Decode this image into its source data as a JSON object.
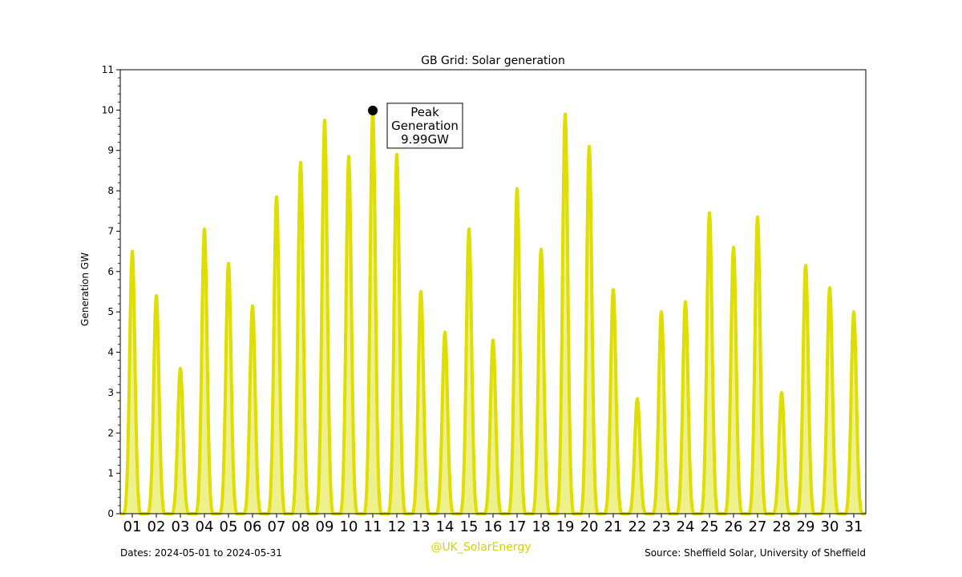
{
  "chart_data": {
    "type": "area",
    "title": "GB Grid: Solar generation",
    "ylabel": "Generation GW",
    "xlabel": "",
    "ylim": [
      0,
      11
    ],
    "yticks": [
      0,
      1,
      2,
      3,
      4,
      5,
      6,
      7,
      8,
      9,
      10,
      11
    ],
    "categories": [
      "01",
      "02",
      "03",
      "04",
      "05",
      "06",
      "07",
      "08",
      "09",
      "10",
      "11",
      "12",
      "13",
      "14",
      "15",
      "16",
      "17",
      "18",
      "19",
      "20",
      "21",
      "22",
      "23",
      "24",
      "25",
      "26",
      "27",
      "28",
      "29",
      "30",
      "31"
    ],
    "series": [
      {
        "values": [
          6.5,
          5.4,
          3.6,
          7.05,
          6.2,
          5.15,
          7.85,
          8.7,
          9.75,
          8.85,
          9.99,
          8.9,
          5.5,
          4.5,
          7.05,
          4.3,
          8.05,
          6.55,
          9.9,
          9.1,
          5.55,
          2.85,
          5.0,
          5.25,
          7.45,
          6.6,
          7.35,
          3.0,
          6.15,
          5.6,
          5.0
        ]
      }
    ],
    "colors": {
      "line": "#dede00",
      "fill": "#eef08e"
    },
    "grid": false,
    "annotation": {
      "day": "11",
      "value": 9.99,
      "lines": [
        "Peak",
        "Generation",
        "9.99GW"
      ]
    }
  },
  "footer": {
    "dates": "Dates: 2024-05-01 to 2024-05-31",
    "handle": "@UK_SolarEnergy",
    "source": "Source: Sheffield Solar, University of Sheffield"
  }
}
